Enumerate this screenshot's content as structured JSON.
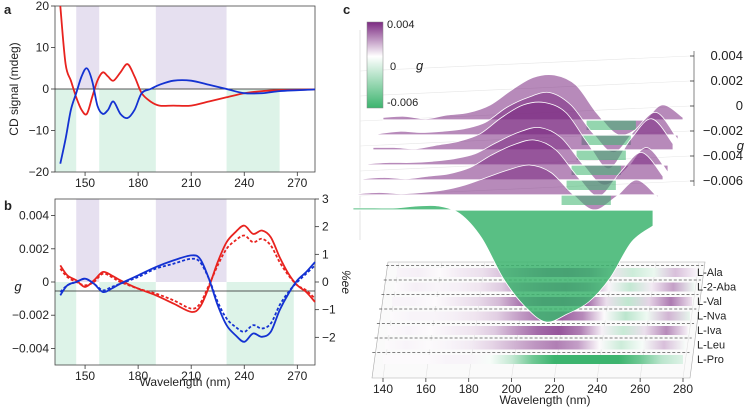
{
  "colors": {
    "red": "#e8231f",
    "blue": "#1432d2",
    "purple": "#7c2a82",
    "green": "#3cb46e",
    "shadePurple": "#e6e0f0",
    "shadeGreen": "#ddf3e8"
  },
  "chart_data": [
    {
      "panel": "a",
      "type": "line",
      "xlabel": "",
      "ylabel": "CD signal (mdeg)",
      "xlim": [
        133,
        280
      ],
      "ylim": [
        -20,
        20
      ],
      "xticks": [
        150,
        180,
        210,
        240,
        270
      ],
      "yticks": [
        -20,
        -10,
        0,
        10,
        20
      ],
      "bands_purple": [
        [
          145,
          158
        ],
        [
          190,
          230
        ]
      ],
      "bands_green": [
        [
          133,
          145
        ],
        [
          158,
          190
        ],
        [
          230,
          260
        ]
      ],
      "series": [
        {
          "name": "red",
          "color": "#e8231f",
          "x": [
            136,
            139,
            142,
            145,
            148,
            151,
            154,
            157,
            160,
            163,
            166,
            170,
            174,
            178,
            182,
            187,
            192,
            200,
            210,
            220,
            230,
            240,
            250,
            260,
            270,
            280
          ],
          "y": [
            20,
            6,
            2,
            -2,
            -5,
            -6,
            -2,
            2,
            4,
            3,
            2,
            4,
            6,
            3,
            -1,
            -3,
            -4,
            -4,
            -4,
            -3,
            -2,
            -1,
            -0.5,
            -0.3,
            -0.2,
            -0.1
          ]
        },
        {
          "name": "blue",
          "color": "#1432d2",
          "x": [
            136,
            139,
            142,
            145,
            148,
            151,
            154,
            157,
            160,
            163,
            166,
            170,
            174,
            178,
            182,
            187,
            192,
            200,
            210,
            220,
            230,
            240,
            250,
            260,
            270,
            280
          ],
          "y": [
            -18,
            -12,
            -5,
            -1,
            3,
            5,
            2,
            -4,
            -6,
            -5,
            -3,
            -6,
            -7,
            -5,
            -1,
            0,
            1,
            2,
            2,
            1,
            0,
            -1,
            -1,
            -0.5,
            -0.3,
            -0.1
          ]
        }
      ]
    },
    {
      "panel": "b",
      "type": "line",
      "xlabel": "Wavelength (nm)",
      "ylabel": "g",
      "ylabel_right": "%ee",
      "xlim": [
        133,
        280
      ],
      "ylim": [
        -0.005,
        0.005
      ],
      "ylim_right": [
        -3,
        3
      ],
      "xticks": [
        150,
        180,
        210,
        240,
        270
      ],
      "yticks": [
        -0.004,
        -0.002,
        0,
        0.002,
        0.004
      ],
      "yticks_right": [
        -2,
        -1,
        0,
        1,
        2,
        3
      ],
      "bands_purple": [
        [
          145,
          158
        ],
        [
          190,
          230
        ]
      ],
      "bands_green": [
        [
          133,
          145
        ],
        [
          158,
          190
        ],
        [
          230,
          268
        ]
      ],
      "series": [
        {
          "name": "red",
          "color": "#e8231f",
          "style": "solid",
          "x": [
            136,
            140,
            145,
            150,
            155,
            160,
            165,
            170,
            180,
            190,
            200,
            210,
            215,
            220,
            225,
            230,
            235,
            240,
            245,
            250,
            255,
            260,
            265,
            270,
            275,
            280
          ],
          "y": [
            0.001,
            0.0004,
            0.0001,
            -0.0003,
            0.0001,
            0.0006,
            0.0004,
            0.0001,
            -0.0004,
            -0.0008,
            -0.0013,
            -0.0018,
            -0.0015,
            -0.0003,
            0.0012,
            0.0024,
            0.003,
            0.0034,
            0.0029,
            0.0031,
            0.0027,
            0.0015,
            0.0005,
            -0.0002,
            -0.0006,
            -0.0012
          ]
        },
        {
          "name": "red-dashed",
          "color": "#e8231f",
          "style": "dashed",
          "x": [
            136,
            140,
            145,
            150,
            155,
            160,
            165,
            170,
            180,
            190,
            200,
            210,
            215,
            220,
            225,
            230,
            235,
            240,
            245,
            250,
            255,
            260,
            265,
            270,
            275,
            280
          ],
          "y": [
            0.0008,
            0.0003,
            0,
            -0.0002,
            0,
            0.0005,
            0.0003,
            0,
            -0.0004,
            -0.0007,
            -0.0011,
            -0.0016,
            -0.0013,
            -0.0002,
            0.001,
            0.002,
            0.0025,
            0.0028,
            0.0024,
            0.0026,
            0.0022,
            0.0012,
            0.0004,
            -0.0002,
            -0.0005,
            -0.001
          ]
        },
        {
          "name": "blue",
          "color": "#1432d2",
          "style": "solid",
          "x": [
            136,
            140,
            145,
            150,
            155,
            160,
            165,
            170,
            180,
            190,
            200,
            210,
            215,
            220,
            225,
            230,
            235,
            240,
            245,
            250,
            255,
            260,
            265,
            270,
            275,
            280
          ],
          "y": [
            -0.0008,
            -0.0002,
            0,
            0.0002,
            -0.0001,
            -0.0006,
            -0.0004,
            -0.0001,
            0.0004,
            0.0009,
            0.0013,
            0.0016,
            0.0014,
            0.0002,
            -0.0014,
            -0.0026,
            -0.0032,
            -0.0036,
            -0.0031,
            -0.0033,
            -0.003,
            -0.0017,
            -0.0007,
            0.0001,
            0.0006,
            0.0012
          ]
        },
        {
          "name": "blue-dashed",
          "color": "#1432d2",
          "style": "dashed",
          "x": [
            136,
            140,
            145,
            150,
            155,
            160,
            165,
            170,
            180,
            190,
            200,
            210,
            215,
            220,
            225,
            230,
            235,
            240,
            245,
            250,
            255,
            260,
            265,
            270,
            275,
            280
          ],
          "y": [
            -0.0006,
            -0.0002,
            0,
            0.0002,
            -0.0001,
            -0.0005,
            -0.0003,
            -0.0001,
            0.0003,
            0.0008,
            0.0011,
            0.0014,
            0.0012,
            0.0002,
            -0.0012,
            -0.0022,
            -0.0027,
            -0.003,
            -0.0026,
            -0.0028,
            -0.0025,
            -0.0014,
            -0.0006,
            0,
            0.0005,
            0.001
          ]
        }
      ]
    },
    {
      "panel": "c",
      "type": "area",
      "xlabel": "Wavelength (nm)",
      "zlabel": "g",
      "xticks": [
        140,
        160,
        180,
        200,
        220,
        240,
        260,
        280
      ],
      "zticks": [
        "0.004",
        "0.002",
        "0",
        "-0.002",
        "-0.004",
        "-0.006"
      ],
      "colorbar": {
        "max": "0.004",
        "mid": "0",
        "min": "-0.006",
        "label": "g"
      },
      "amino_acids": [
        "L-Ala",
        "L-2-Aba",
        "L-Val",
        "L-Nva",
        "L-Iva",
        "L-Leu",
        "L-Pro"
      ],
      "x": [
        140,
        150,
        160,
        170,
        180,
        190,
        200,
        210,
        220,
        230,
        240,
        250,
        260,
        270,
        280
      ],
      "series": [
        {
          "name": "L-Ala",
          "values": [
            0.0002,
            0.0003,
            0.0001,
            0.0004,
            0.0006,
            0.0012,
            0.0024,
            0.0034,
            0.0036,
            0.0028,
            0.0005,
            -0.0012,
            -0.0005,
            0.0012,
            0.0002
          ]
        },
        {
          "name": "L-2-Aba",
          "values": [
            0.0001,
            0.0003,
            0.0002,
            0.0003,
            0.0005,
            0.001,
            0.0022,
            0.003,
            0.0034,
            0.0024,
            0.0002,
            -0.0014,
            0.0004,
            0.0018,
            -0.0004
          ]
        },
        {
          "name": "L-Val",
          "values": [
            0.0002,
            0.0002,
            0.0001,
            0.0004,
            0.0007,
            0.0013,
            0.0026,
            0.0036,
            0.0038,
            0.003,
            0.0006,
            -0.0015,
            0.0008,
            0.0025,
            0.0005
          ]
        },
        {
          "name": "L-Nva",
          "values": [
            0.0001,
            0.0002,
            0.0002,
            0.0003,
            0.0005,
            0.0009,
            0.0018,
            0.0026,
            0.003,
            0.0022,
            0.0001,
            -0.0016,
            -0.0004,
            0.0014,
            -0.0006
          ]
        },
        {
          "name": "L-Iva",
          "values": [
            0.0001,
            0.0002,
            0.0001,
            0.0003,
            0.0005,
            0.001,
            0.002,
            0.0028,
            0.0032,
            0.0024,
            0.0003,
            -0.0013,
            0.0006,
            0.0022,
            0.0003
          ]
        },
        {
          "name": "L-Leu",
          "values": [
            0.0001,
            0.0002,
            0.0001,
            0.0002,
            0.0004,
            0.0008,
            0.0014,
            0.002,
            0.0024,
            0.0018,
            0.0001,
            -0.0012,
            -0.0002,
            0.0012,
            -0.0002
          ]
        },
        {
          "name": "L-Pro",
          "values": [
            0.0001,
            0.0001,
            0.0001,
            0.0002,
            0.0002,
            -0.0002,
            -0.0014,
            -0.0034,
            -0.0048,
            -0.0056,
            -0.0052,
            -0.0046,
            -0.0034,
            -0.0016,
            -0.0008
          ]
        }
      ]
    }
  ],
  "panel_labels": {
    "a": "a",
    "b": "b",
    "c": "c"
  }
}
